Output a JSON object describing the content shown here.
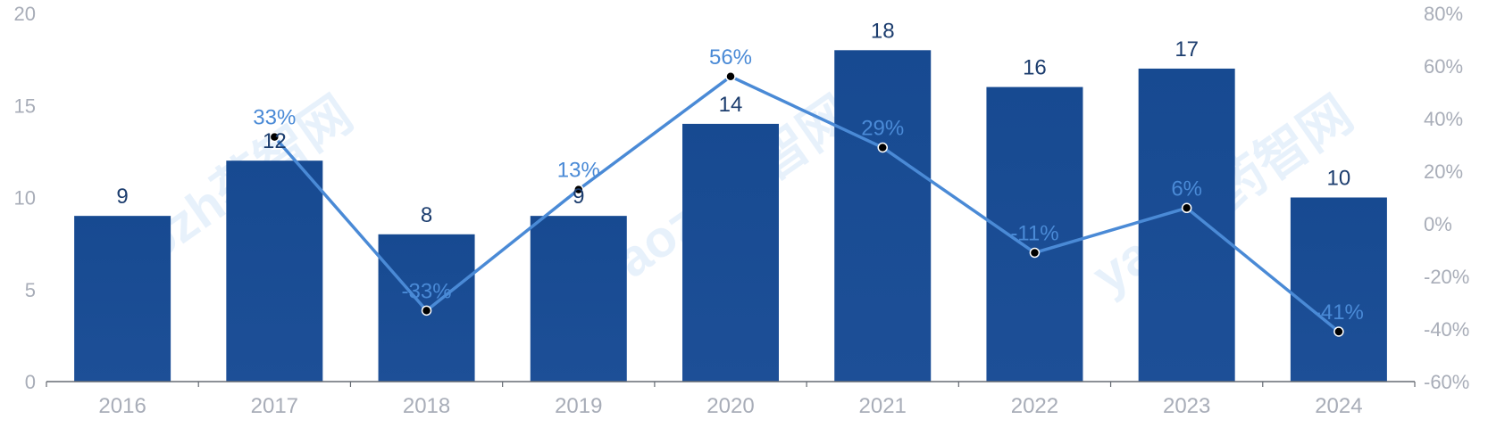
{
  "chart_data": {
    "type": "bar",
    "categories": [
      "2016",
      "2017",
      "2018",
      "2019",
      "2020",
      "2021",
      "2022",
      "2023",
      "2024"
    ],
    "series": [
      {
        "type": "bar",
        "values": [
          9,
          12,
          8,
          9,
          14,
          18,
          16,
          17,
          10
        ],
        "labels": [
          "9",
          "12",
          "8",
          "9",
          "14",
          "18",
          "16",
          "17",
          "10"
        ],
        "color": "#1b4d96",
        "axis": "left"
      },
      {
        "type": "line",
        "values": [
          null,
          33,
          -33,
          13,
          56,
          29,
          -11,
          6,
          -41
        ],
        "labels": [
          "",
          "33%",
          "-33%",
          "13%",
          "56%",
          "29%",
          "-11%",
          "6%",
          "-41%"
        ],
        "color": "#4a8ad6",
        "axis": "right"
      }
    ],
    "y_left": {
      "range": [
        0,
        20
      ],
      "ticks": [
        "0",
        "5",
        "10",
        "15",
        "20"
      ]
    },
    "y_right": {
      "range": [
        -60,
        80
      ],
      "ticks": [
        "-60%",
        "-40%",
        "-20%",
        "0%",
        "20%",
        "40%",
        "60%",
        "80%"
      ]
    },
    "grid": false,
    "legend": "none",
    "watermark": "yaozh药智网"
  }
}
